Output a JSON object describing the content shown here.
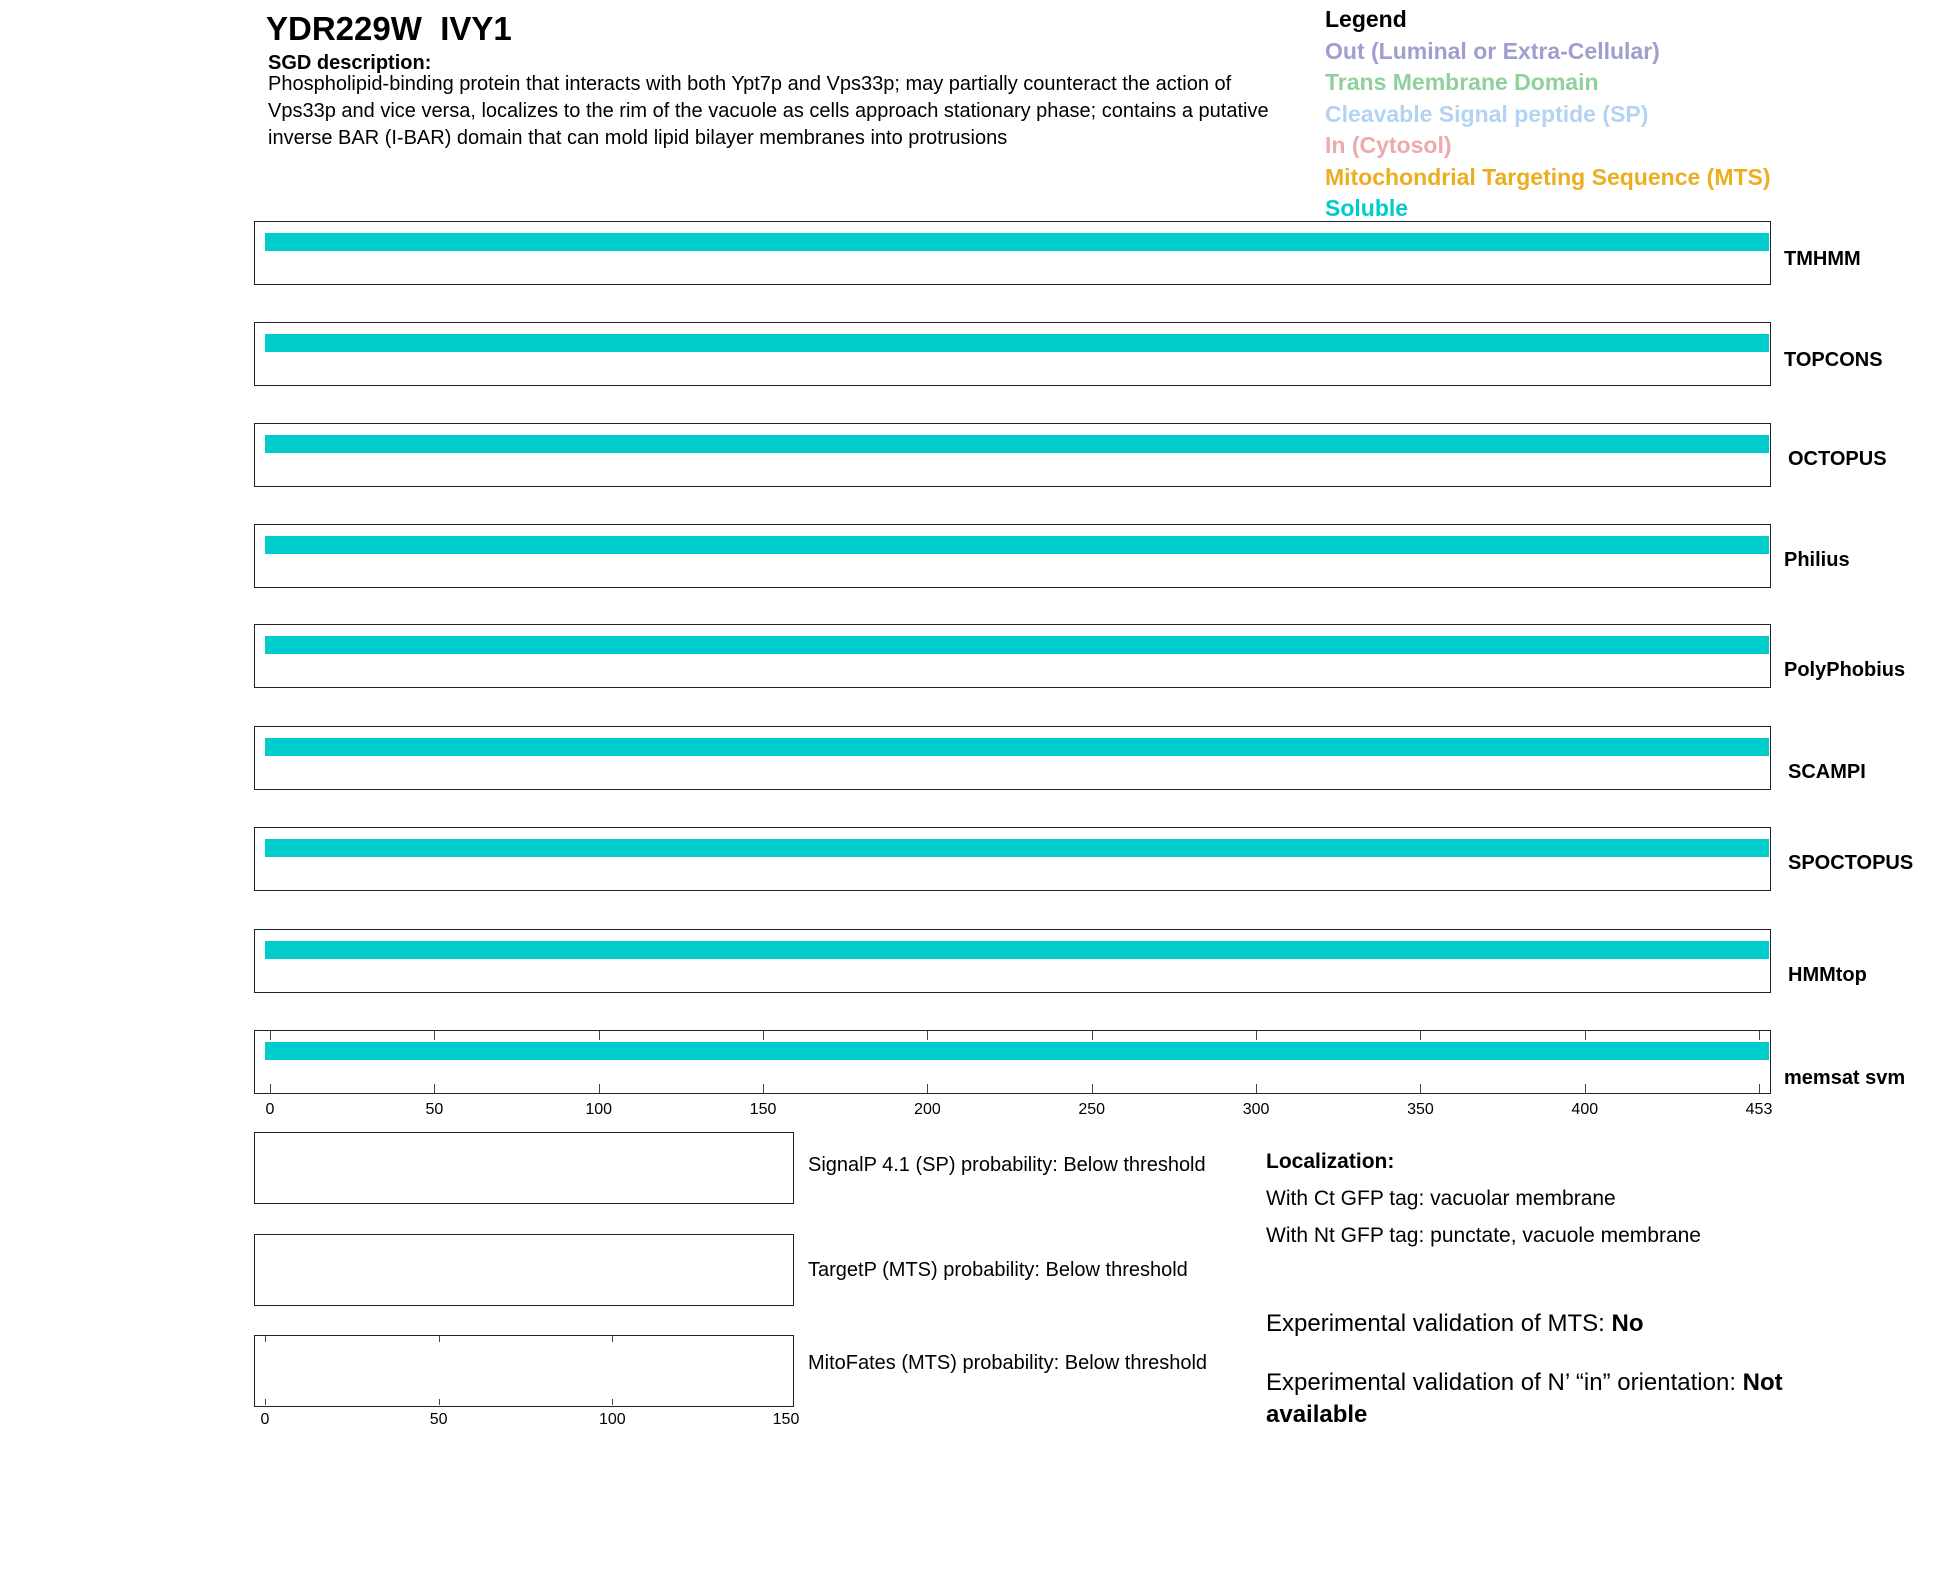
{
  "header": {
    "title": "YDR229W  IVY1",
    "sgd_heading": "SGD description:",
    "sgd_text": "Phospholipid-binding protein that interacts with both Ypt7p and Vps33p; may partially counteract the action of Vps33p and vice versa, localizes to the rim of the vacuole as cells approach stationary phase; contains a putative inverse BAR (I-BAR) domain that can mold lipid bilayer membranes into protrusions"
  },
  "legend": {
    "title": "Legend",
    "items": [
      {
        "label": "Out (Luminal or Extra-Cellular)",
        "color": "#9f9fcf"
      },
      {
        "label": "Trans Membrane Domain",
        "color": "#8fd19b"
      },
      {
        "label": "Cleavable Signal peptide (SP)",
        "color": "#b3d3f2"
      },
      {
        "label": "In (Cytosol)",
        "color": "#eeaaaa"
      },
      {
        "label": "Mitochondrial Targeting Sequence (MTS)",
        "color": "#ecae20"
      },
      {
        "label": "Soluble",
        "color": "#00cccc"
      }
    ]
  },
  "chart_data": {
    "type": "bar",
    "xlim": [
      0,
      453
    ],
    "xticks": [
      0,
      50,
      100,
      150,
      200,
      250,
      300,
      350,
      400,
      453
    ],
    "tracks": [
      {
        "name": "TMHMM",
        "segments": [
          {
            "start": 0,
            "end": 453,
            "type": "Soluble"
          }
        ]
      },
      {
        "name": "TOPCONS",
        "segments": [
          {
            "start": 0,
            "end": 453,
            "type": "Soluble"
          }
        ]
      },
      {
        "name": "OCTOPUS",
        "segments": [
          {
            "start": 0,
            "end": 453,
            "type": "Soluble"
          }
        ]
      },
      {
        "name": "Philius",
        "segments": [
          {
            "start": 0,
            "end": 453,
            "type": "Soluble"
          }
        ]
      },
      {
        "name": "PolyPhobius",
        "segments": [
          {
            "start": 0,
            "end": 453,
            "type": "Soluble"
          }
        ]
      },
      {
        "name": "SCAMPI",
        "segments": [
          {
            "start": 0,
            "end": 453,
            "type": "Soluble"
          }
        ]
      },
      {
        "name": "SPOCTOPUS",
        "segments": [
          {
            "start": 0,
            "end": 453,
            "type": "Soluble"
          }
        ]
      },
      {
        "name": "HMMtop",
        "segments": [
          {
            "start": 0,
            "end": 453,
            "type": "Soluble"
          }
        ]
      },
      {
        "name": "memsat svm",
        "segments": [
          {
            "start": 0,
            "end": 453,
            "type": "Soluble"
          }
        ]
      }
    ],
    "probability_plots": {
      "xlim": [
        0,
        150
      ],
      "xticks": [
        0,
        50,
        100,
        150
      ],
      "plots": [
        {
          "label": "SignalP 4.1 (SP) probability: Below threshold"
        },
        {
          "label": "TargetP (MTS) probability: Below threshold"
        },
        {
          "label": "MitoFates (MTS) probability: Below threshold"
        }
      ]
    }
  },
  "localization": {
    "heading": "Localization:",
    "ct": "With Ct GFP tag: vacuolar membrane",
    "nt": "With Nt GFP tag: punctate, vacuole membrane",
    "mts_label": "Experimental validation of MTS: ",
    "mts_value": "No",
    "orient_label": "Experimental validation of N’ “in” orientation: ",
    "orient_value": "Not available"
  }
}
